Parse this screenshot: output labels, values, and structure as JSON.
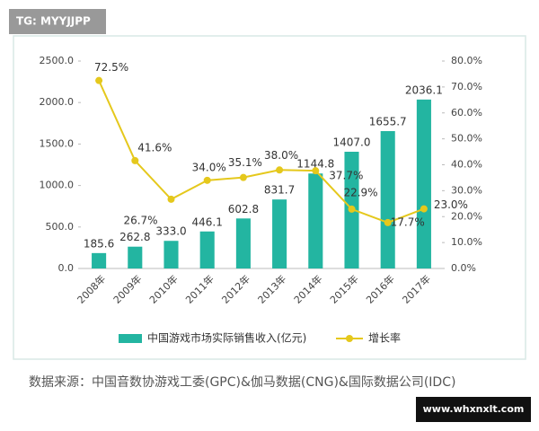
{
  "chart_data": {
    "type": "bar-line",
    "categories": [
      "2008年",
      "2009年",
      "2010年",
      "2011年",
      "2012年",
      "2013年",
      "2014年",
      "2015年",
      "2016年",
      "2017年"
    ],
    "series": [
      {
        "name": "中国游戏市场实际销售收入(亿元)",
        "color": "#23b5a1",
        "type": "bar",
        "values": [
          185.6,
          262.8,
          333.0,
          446.1,
          602.8,
          831.7,
          1144.8,
          1407.0,
          1655.7,
          2036.1
        ],
        "value_labels": [
          "185.6",
          "262.8",
          "333.0",
          "446.1",
          "602.8",
          "831.7",
          "1144.8",
          "1407.0",
          "1655.7",
          "2036.1"
        ]
      },
      {
        "name": "增长率",
        "color": "#e5c81c",
        "type": "line",
        "axis": "y2",
        "values": [
          72.5,
          41.6,
          26.7,
          34.0,
          35.1,
          38.0,
          37.7,
          22.9,
          17.7,
          23.0
        ],
        "value_labels": [
          "72.5%",
          "41.6%",
          "26.7%",
          "34.0%",
          "35.1%",
          "38.0%",
          "37.7%",
          "22.9%",
          "17.7%",
          "23.0%"
        ]
      }
    ],
    "ylim": [
      0,
      2500
    ],
    "yticks": [
      {
        "value": 0,
        "label": "0.0"
      },
      {
        "value": 500,
        "label": "500.0"
      },
      {
        "value": 1000,
        "label": "1000.0"
      },
      {
        "value": 1500,
        "label": "1500.0"
      },
      {
        "value": 2000,
        "label": "2000.0"
      },
      {
        "value": 2500,
        "label": "2500.0"
      }
    ],
    "y2lim": [
      0,
      80
    ],
    "y2ticks": [
      {
        "value": 0,
        "label": "0.0%"
      },
      {
        "value": 10,
        "label": "10.0%"
      },
      {
        "value": 20,
        "label": "20.0%"
      },
      {
        "value": 30,
        "label": "30.0%"
      },
      {
        "value": 40,
        "label": "40.0%"
      },
      {
        "value": 50,
        "label": "50.0%"
      },
      {
        "value": 60,
        "label": "60.0%"
      },
      {
        "value": 70,
        "label": "70.0%"
      },
      {
        "value": 80,
        "label": "80.0%"
      }
    ],
    "legend": "bottom",
    "source": "数据来源：中国音数协游戏工委(GPC)&伽马数据(CNG)&国际数据公司(IDC)",
    "watermarks": [
      "TG: MYYJJPP",
      "www.whxnxlt.com"
    ]
  }
}
